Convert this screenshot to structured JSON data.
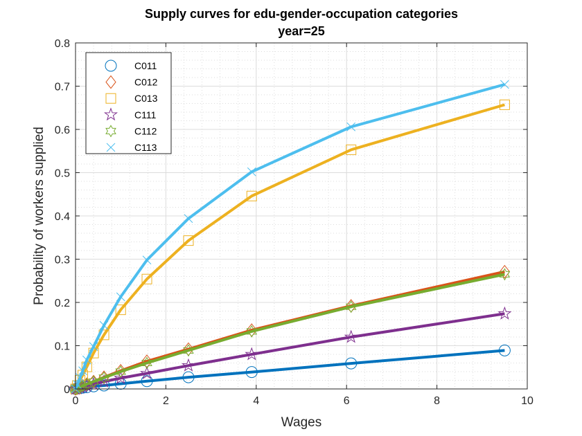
{
  "chart_data": {
    "type": "line",
    "title": "Supply curves for edu-gender-occupation categories",
    "subtitle": "year=25",
    "xlabel": "Wages",
    "ylabel": "Probability of workers supplied",
    "xlim": [
      0,
      10
    ],
    "ylim": [
      0,
      0.8
    ],
    "xticks": [
      "0",
      "2",
      "4",
      "6",
      "8",
      "10"
    ],
    "yticks": [
      "0",
      "0.1",
      "0.2",
      "0.3",
      "0.4",
      "0.5",
      "0.6",
      "0.7",
      "0.8"
    ],
    "grid": true,
    "minor_grid": true,
    "legend_position": "top-left",
    "x": [
      0,
      0.04,
      0.1,
      0.16,
      0.25,
      0.4,
      0.63,
      1.0,
      1.58,
      2.5,
      3.9,
      6.1,
      9.5
    ],
    "series": [
      {
        "name": "C011",
        "marker": "circle",
        "color": "#0072BD",
        "values": [
          0,
          0.001,
          0.002,
          0.003,
          0.004,
          0.006,
          0.008,
          0.012,
          0.018,
          0.027,
          0.039,
          0.059,
          0.089
        ]
      },
      {
        "name": "C012",
        "marker": "diamond",
        "color": "#D95319",
        "values": [
          0,
          0.002,
          0.004,
          0.007,
          0.011,
          0.017,
          0.027,
          0.042,
          0.064,
          0.092,
          0.136,
          0.192,
          0.271
        ]
      },
      {
        "name": "C013",
        "marker": "square",
        "color": "#EDB120",
        "values": [
          0,
          0.008,
          0.02,
          0.032,
          0.051,
          0.083,
          0.125,
          0.183,
          0.254,
          0.343,
          0.446,
          0.553,
          0.657
        ]
      },
      {
        "name": "C111",
        "marker": "pentagram",
        "color": "#7E2F8E",
        "values": [
          0,
          0.001,
          0.003,
          0.005,
          0.007,
          0.011,
          0.017,
          0.025,
          0.036,
          0.054,
          0.08,
          0.12,
          0.174
        ]
      },
      {
        "name": "C112",
        "marker": "hexagram",
        "color": "#77AC30",
        "values": [
          0,
          0.002,
          0.004,
          0.007,
          0.011,
          0.017,
          0.026,
          0.04,
          0.06,
          0.089,
          0.133,
          0.19,
          0.265
        ]
      },
      {
        "name": "C113",
        "marker": "x",
        "color": "#4DBEEE",
        "values": [
          0,
          0.01,
          0.026,
          0.042,
          0.067,
          0.098,
          0.147,
          0.213,
          0.298,
          0.394,
          0.502,
          0.606,
          0.704
        ]
      }
    ]
  }
}
